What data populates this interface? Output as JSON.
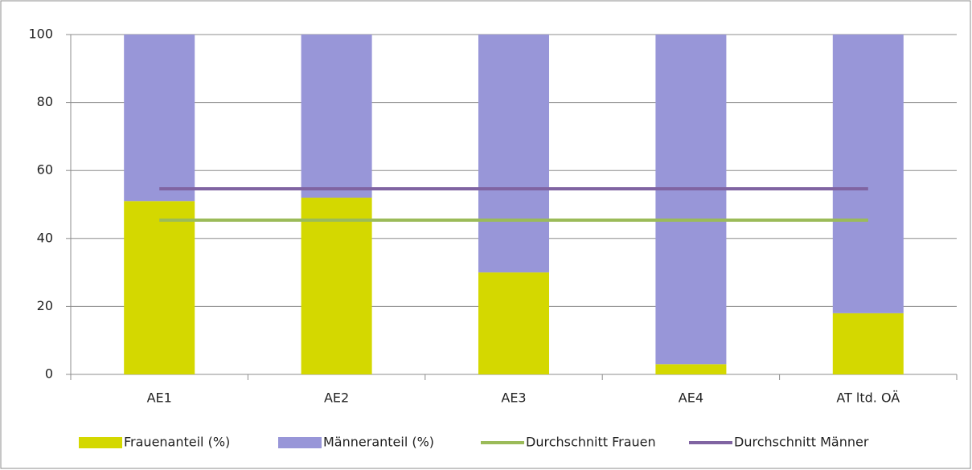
{
  "chart_data": {
    "type": "bar",
    "stacked": true,
    "categories": [
      "AE1",
      "AE2",
      "AE3",
      "AE4",
      "AT ltd. OÄ"
    ],
    "series": [
      {
        "name": "Frauenanteil (%)",
        "type": "bar",
        "color": "#d4d800",
        "values": [
          51,
          52,
          30,
          3,
          18
        ]
      },
      {
        "name": "Männeranteil (%)",
        "type": "bar",
        "color": "#9896d8",
        "values": [
          49,
          48,
          70,
          97,
          82
        ]
      },
      {
        "name": "Durchschnitt Frauen",
        "type": "line",
        "color": "#9bbb59",
        "values": [
          45.4,
          45.4,
          45.4,
          45.4,
          45.4
        ]
      },
      {
        "name": "Durchschnitt Männer",
        "type": "line",
        "color": "#8064a2",
        "values": [
          54.6,
          54.6,
          54.6,
          54.6,
          54.6
        ]
      }
    ],
    "ylim": [
      0,
      100
    ],
    "yticks": [
      0,
      20,
      40,
      60,
      80,
      100
    ],
    "grid": true,
    "legend": "bottom"
  }
}
